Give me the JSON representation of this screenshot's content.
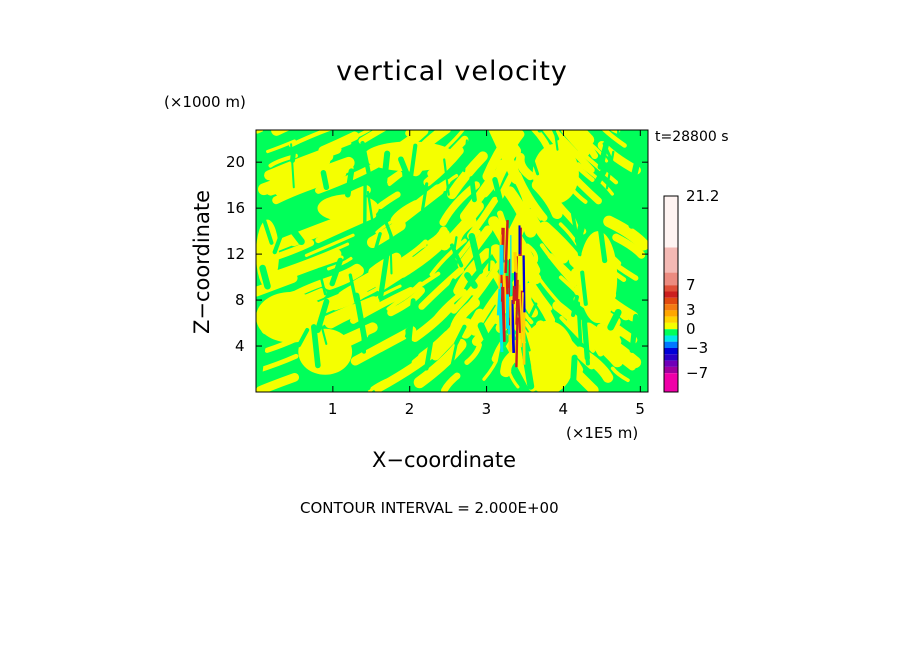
{
  "chart_data": {
    "type": "heatmap",
    "title": "vertical velocity",
    "xlabel": "X−coordinate",
    "ylabel": "Z−coordinate",
    "x_unit": "(×1E5 m)",
    "z_unit": "(×1000 m)",
    "time_label": "t=28800 s",
    "contour_interval": "CONTOUR INTERVAL = 2.000E+00",
    "xlim": [
      0,
      5.1
    ],
    "ylim": [
      0,
      22.8
    ],
    "x_ticks": [
      1,
      2,
      3,
      4,
      5
    ],
    "x_tick_labels": [
      "1",
      "2",
      "3",
      "4",
      "5"
    ],
    "y_ticks": [
      4,
      8,
      12,
      16,
      20
    ],
    "y_tick_labels": [
      "4",
      "8",
      "12",
      "16",
      "20"
    ],
    "colorbar": {
      "min": -10,
      "max": 21.2,
      "labels": [
        {
          "value": 21.2,
          "text": "21.2"
        },
        {
          "value": 7,
          "text": "7"
        },
        {
          "value": 3,
          "text": "3"
        },
        {
          "value": 0,
          "text": "0"
        },
        {
          "value": -3,
          "text": "−3"
        },
        {
          "value": -7,
          "text": "−7"
        }
      ],
      "bins": [
        {
          "lo": 13,
          "hi": 21.2,
          "color": "#fff4f2"
        },
        {
          "lo": 9,
          "hi": 13,
          "color": "#f4b9b4"
        },
        {
          "lo": 7,
          "hi": 9,
          "color": "#ec8b80"
        },
        {
          "lo": 6,
          "hi": 7,
          "color": "#e04f38"
        },
        {
          "lo": 5,
          "hi": 6,
          "color": "#cc1f1f"
        },
        {
          "lo": 4,
          "hi": 5,
          "color": "#e24a10"
        },
        {
          "lo": 3,
          "hi": 4,
          "color": "#f47b12"
        },
        {
          "lo": 2,
          "hi": 3,
          "color": "#ffa600"
        },
        {
          "lo": 1,
          "hi": 2,
          "color": "#ffd400"
        },
        {
          "lo": 0,
          "hi": 1,
          "color": "#f5ff00"
        },
        {
          "lo": -1,
          "hi": 0,
          "color": "#00ff5a"
        },
        {
          "lo": -2,
          "hi": -1,
          "color": "#00e8e8"
        },
        {
          "lo": -3,
          "hi": -2,
          "color": "#0077ff"
        },
        {
          "lo": -4,
          "hi": -3,
          "color": "#0000d8"
        },
        {
          "lo": -5,
          "hi": -4,
          "color": "#2a00c8"
        },
        {
          "lo": -6,
          "hi": -5,
          "color": "#7000b8"
        },
        {
          "lo": -7,
          "hi": -6,
          "color": "#a0009e"
        },
        {
          "lo": -10,
          "hi": -7,
          "color": "#f000a8"
        }
      ]
    },
    "field_colors": {
      "background": "#00ff5a",
      "positive_weak": "#f5ff00",
      "positive_mid": "#ffd400",
      "positive_strong": "#cc1f1f",
      "negative_mid": "#00e8e8",
      "negative_strong": "#0000d8"
    },
    "field_description_zones": {
      "updraft_center_x": 3.35,
      "updraft_z_range": [
        2,
        15
      ]
    }
  }
}
